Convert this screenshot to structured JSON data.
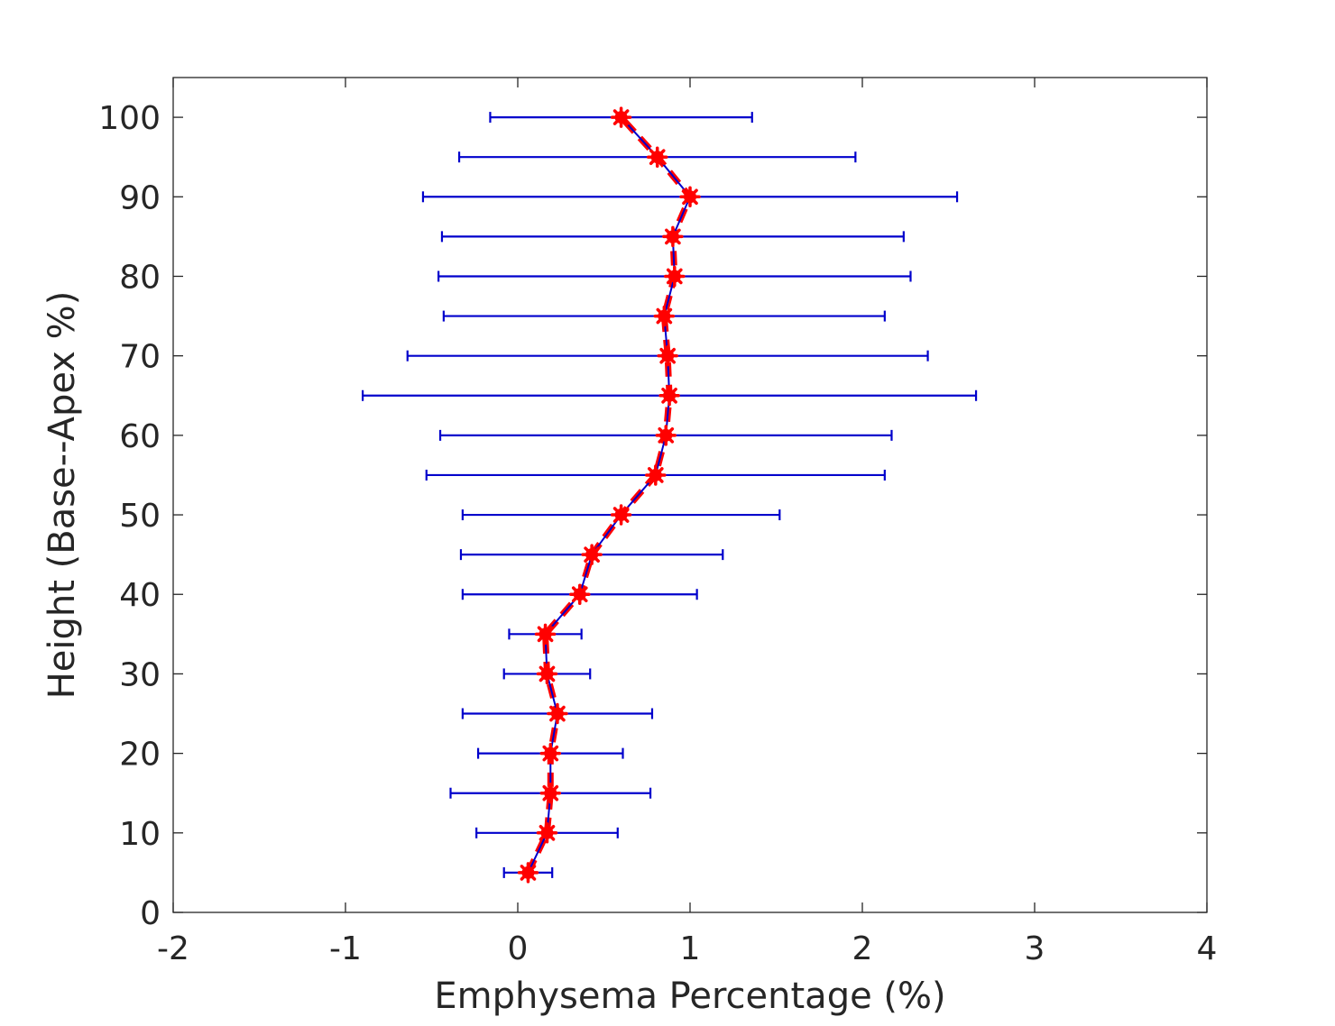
{
  "chart_data": {
    "type": "scatter",
    "xlabel": "Emphysema Percentage (%)",
    "ylabel": "Height (Base--Apex %)",
    "xlim": [
      -2,
      4
    ],
    "ylim": [
      0,
      105
    ],
    "x_ticks": [
      -2,
      -1,
      0,
      1,
      2,
      3,
      4
    ],
    "x_tick_labels": [
      "-2",
      "-1",
      "0",
      "1",
      "2",
      "3",
      "4"
    ],
    "y_ticks": [
      0,
      10,
      20,
      30,
      40,
      50,
      60,
      70,
      80,
      90,
      100
    ],
    "y_tick_labels": [
      "0",
      "10",
      "20",
      "30",
      "40",
      "50",
      "60",
      "70",
      "80",
      "90",
      "100"
    ],
    "grid": false,
    "colors": {
      "line": "#0000cc",
      "marker": "#ff0000",
      "errorbar": "#0000cc",
      "axis": "#262626"
    },
    "series": [
      {
        "y": [
          5,
          10,
          15,
          20,
          25,
          30,
          35,
          40,
          45,
          50,
          55,
          60,
          65,
          70,
          75,
          80,
          85,
          90,
          95,
          100
        ],
        "x": [
          0.06,
          0.17,
          0.19,
          0.19,
          0.23,
          0.17,
          0.16,
          0.36,
          0.43,
          0.6,
          0.8,
          0.86,
          0.88,
          0.87,
          0.85,
          0.91,
          0.9,
          1.0,
          0.81,
          0.6
        ],
        "xerr": [
          0.14,
          0.41,
          0.58,
          0.42,
          0.55,
          0.25,
          0.21,
          0.68,
          0.76,
          0.92,
          1.33,
          1.31,
          1.78,
          1.51,
          1.28,
          1.37,
          1.34,
          1.55,
          1.15,
          0.76
        ]
      }
    ]
  }
}
